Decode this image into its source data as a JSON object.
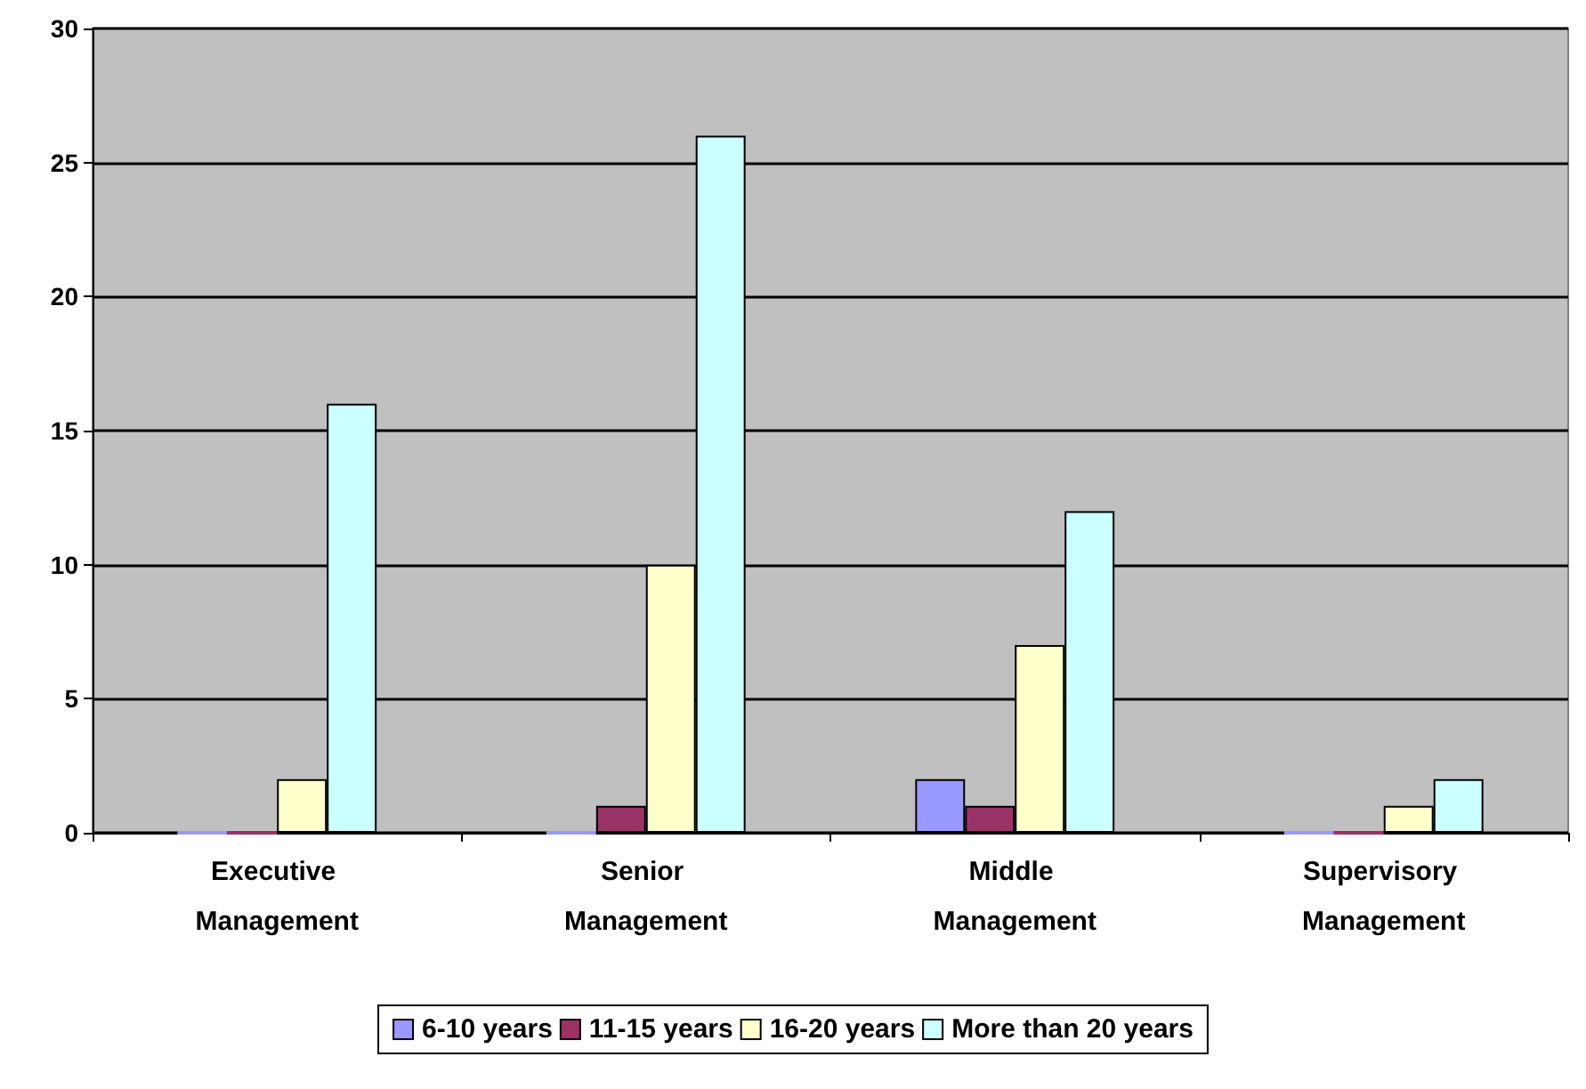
{
  "chart_data": {
    "type": "bar",
    "categories": [
      "Executive Management",
      "Senior Management",
      "Middle Management",
      "Supervisory Management"
    ],
    "series": [
      {
        "name": "6-10 years",
        "color": "#9999ff",
        "values": [
          0,
          0,
          2,
          0
        ]
      },
      {
        "name": "11-15 years",
        "color": "#993366",
        "values": [
          0,
          1,
          1,
          0
        ]
      },
      {
        "name": "16-20 years",
        "color": "#ffffcc",
        "values": [
          2,
          10,
          7,
          1
        ]
      },
      {
        "name": "More than 20 years",
        "color": "#ccffff",
        "values": [
          16,
          26,
          12,
          2
        ]
      }
    ],
    "ylim": [
      0,
      30
    ],
    "yticks": [
      0,
      5,
      10,
      15,
      20,
      25,
      30
    ],
    "grid": "y",
    "legend": "bottom"
  }
}
